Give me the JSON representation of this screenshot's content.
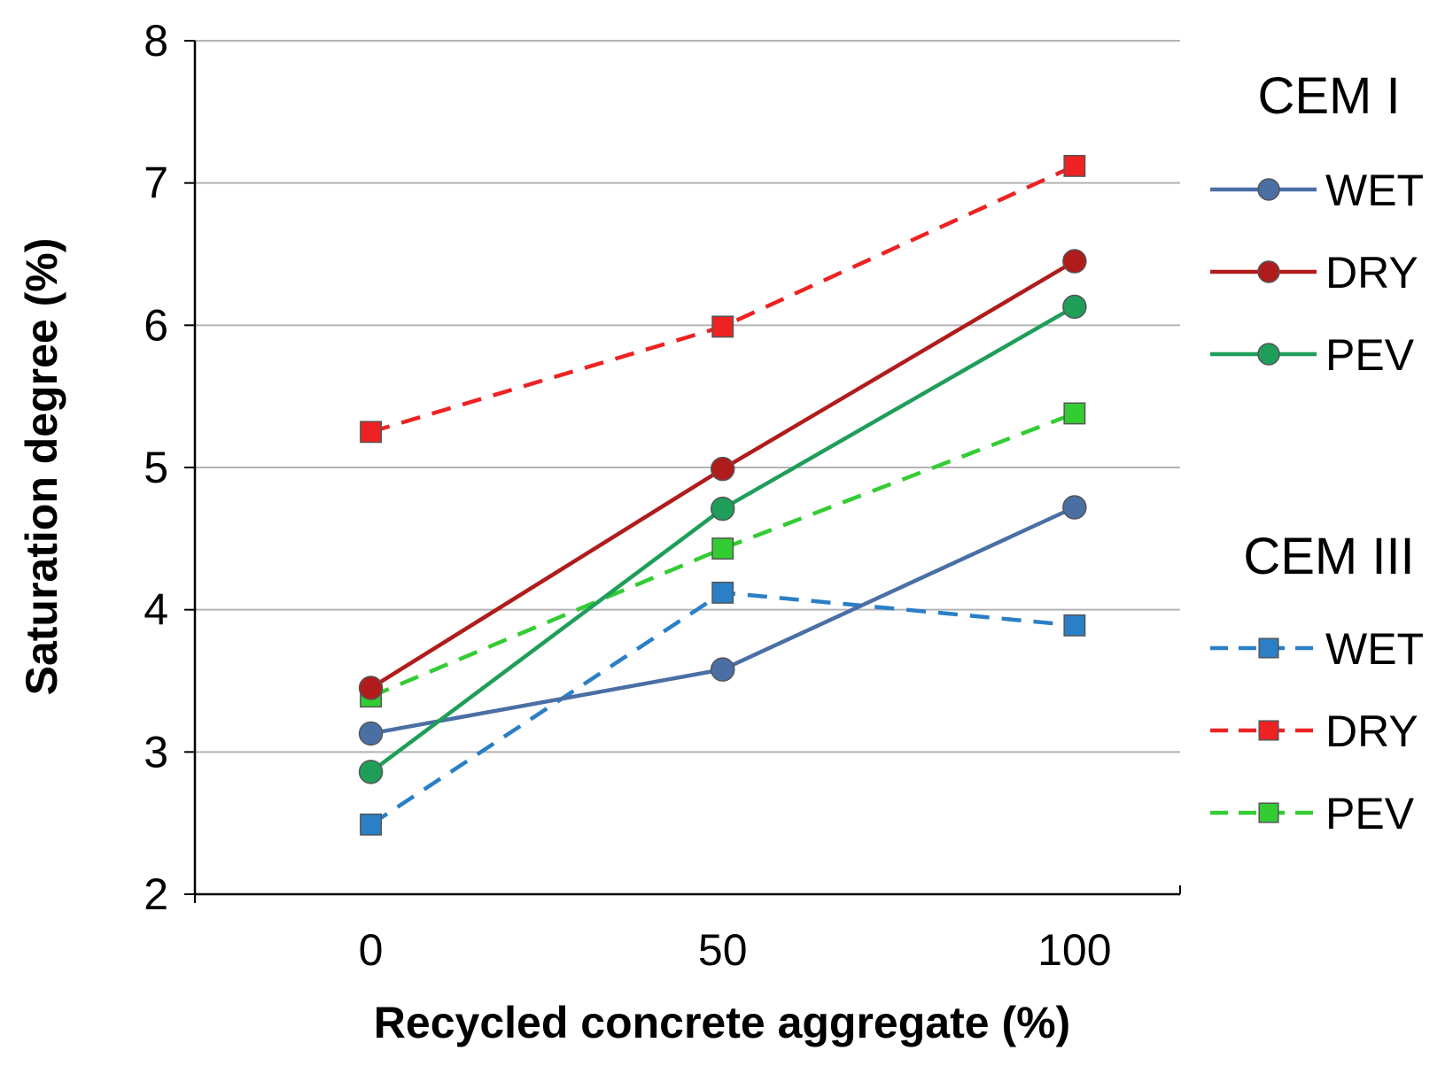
{
  "chart_data": {
    "type": "line",
    "title": "",
    "xlabel": "Recycled concrete aggregate (%)",
    "ylabel": "Saturation degree (%)",
    "x": [
      0,
      50,
      100
    ],
    "x_ticks": [
      "0",
      "50",
      "100"
    ],
    "xlim": [
      -25,
      115
    ],
    "ylim": [
      2,
      8
    ],
    "y_ticks": [
      "2",
      "3",
      "4",
      "5",
      "6",
      "7",
      "8"
    ],
    "grid": "horizontal",
    "legend_position": "right",
    "groups": [
      {
        "title": "CEM I",
        "series": [
          {
            "name": "WET",
            "values": [
              3.13,
              3.58,
              4.72
            ],
            "color": "#4a6fa5",
            "dash": "solid",
            "marker": "circle"
          },
          {
            "name": "DRY",
            "values": [
              3.45,
              4.99,
              6.45
            ],
            "color": "#b01c1c",
            "dash": "solid",
            "marker": "circle"
          },
          {
            "name": "PEV",
            "values": [
              2.86,
              4.71,
              6.13
            ],
            "color": "#1f9e5a",
            "dash": "solid",
            "marker": "circle"
          }
        ]
      },
      {
        "title": "CEM III",
        "series": [
          {
            "name": "WET",
            "values": [
              2.49,
              4.12,
              3.89
            ],
            "color": "#2a7fc6",
            "dash": "dashed",
            "marker": "square"
          },
          {
            "name": "DRY",
            "values": [
              5.25,
              5.99,
              7.12
            ],
            "color": "#ee2222",
            "dash": "dashed",
            "marker": "square"
          },
          {
            "name": "PEV",
            "values": [
              3.39,
              4.43,
              5.38
            ],
            "color": "#33cc33",
            "dash": "dashed",
            "marker": "square"
          }
        ]
      }
    ]
  }
}
